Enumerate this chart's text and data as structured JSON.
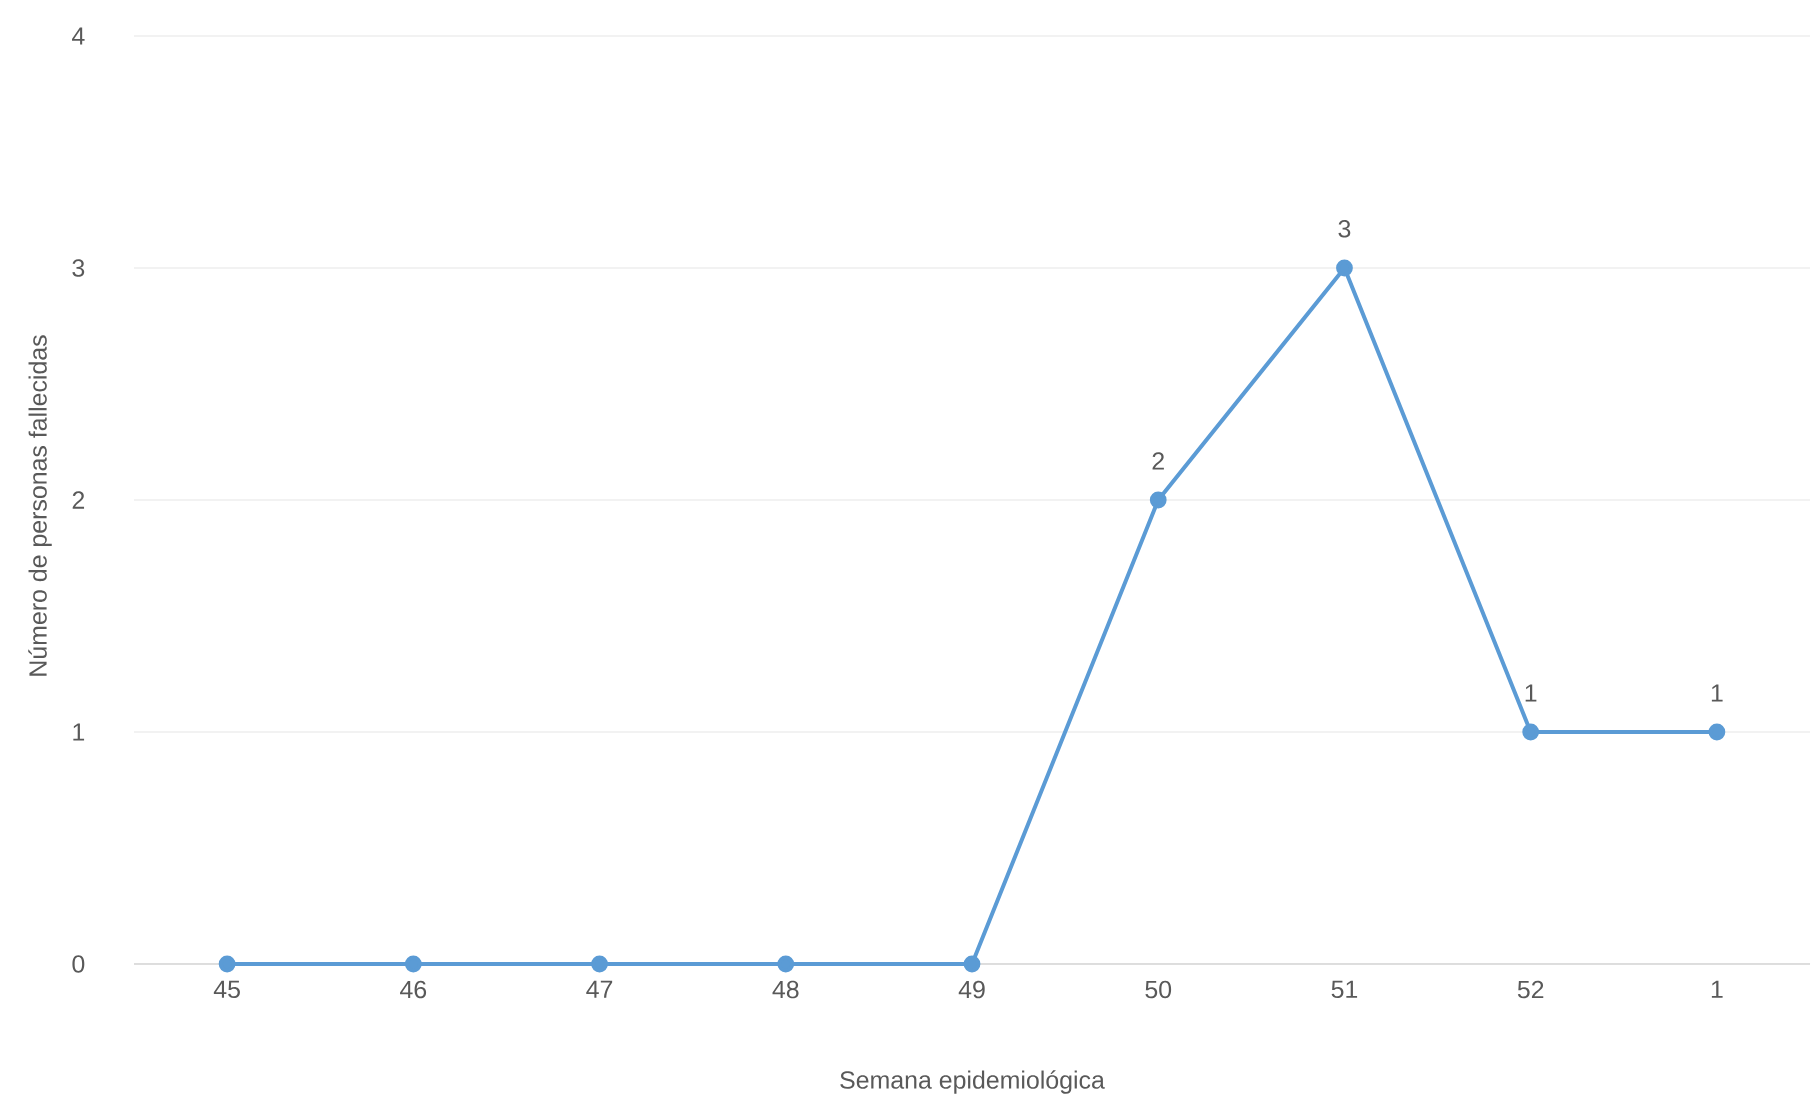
{
  "chart_data": {
    "type": "line",
    "xlabel": "Semana epidemiológica",
    "ylabel": "Número de personas fallecidas",
    "categories": [
      "45",
      "46",
      "47",
      "48",
      "49",
      "50",
      "51",
      "52",
      "1"
    ],
    "values": [
      0,
      0,
      0,
      0,
      0,
      2,
      3,
      1,
      1
    ],
    "value_labels": [
      null,
      null,
      null,
      null,
      null,
      "2",
      "3",
      "1",
      "1"
    ],
    "color": "#5b9bd5",
    "ylim": [
      0,
      4
    ],
    "yticks": [
      0,
      1,
      2,
      3,
      4
    ],
    "grid": "y",
    "marker": "circle",
    "line_style": "solid"
  }
}
